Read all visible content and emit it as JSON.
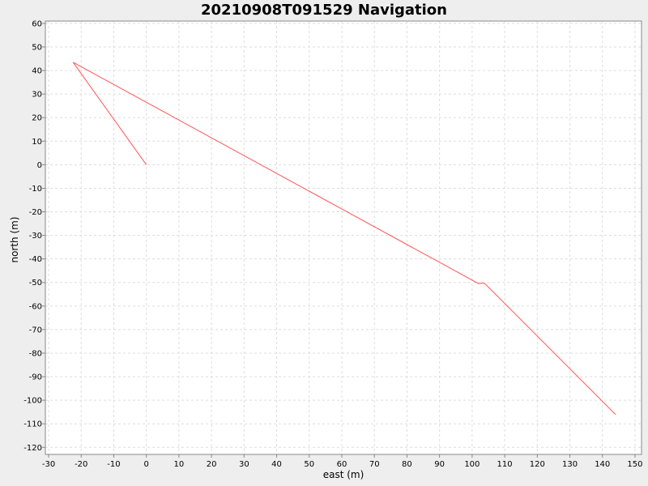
{
  "chart_data": {
    "type": "line",
    "title": "20210908T091529 Navigation",
    "xlabel": "east (m)",
    "ylabel": "north (m)",
    "xlim": [
      -31,
      152
    ],
    "ylim": [
      -123,
      61
    ],
    "xticks": [
      -30,
      -20,
      -10,
      0,
      10,
      20,
      30,
      40,
      50,
      60,
      70,
      80,
      90,
      100,
      110,
      120,
      130,
      140,
      150
    ],
    "yticks": [
      60,
      50,
      40,
      30,
      20,
      10,
      0,
      -10,
      -20,
      -30,
      -40,
      -50,
      -60,
      -70,
      -80,
      -90,
      -100,
      -110,
      -120
    ],
    "grid": true,
    "series": [
      {
        "color": "#ff5555",
        "x": [
          0,
          -22.5,
          102,
          103.2,
          104,
          144
        ],
        "y": [
          0,
          43.5,
          -50.5,
          -50.2,
          -50.6,
          -106
        ]
      }
    ]
  },
  "colors": {
    "background": "#eeeeee",
    "plot_background": "#ffffff",
    "grid": "#dddddd",
    "axis": "#888888"
  }
}
